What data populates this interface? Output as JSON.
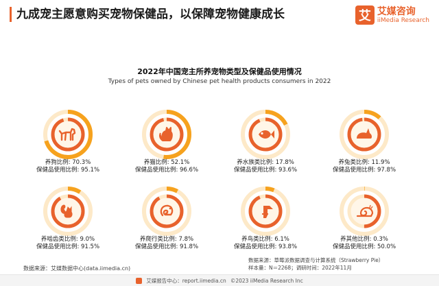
{
  "header": {
    "headline": "九成宠主愿意购买宠物保健品，以保障宠物健康成长"
  },
  "logo": {
    "mark": "艾",
    "name_cn": "艾媒咨询",
    "name_en": "iiMedia Research"
  },
  "colors": {
    "accent": "#e8622c",
    "ring_outer": "#f6a21e",
    "ring_track": "#fde9c8",
    "ring_inner": "#e8622c",
    "inner_bg": "#fff6e8"
  },
  "chart_data": {
    "type": "donut",
    "title": "2022年中国宠主所养宠物类型及保健品使用情况",
    "subtitle": "Types of pets owned by Chinese pet health products consumers in 2022",
    "categories": [
      {
        "icon": "dog-icon",
        "pet_label": "养狗比例: 70.3%",
        "health_label": "保健品使用比例: 95.1%",
        "pet_ratio": 70.3,
        "health_ratio": 95.1
      },
      {
        "icon": "cat-icon",
        "pet_label": "养猫比例: 52.1%",
        "health_label": "保健品使用比例: 96.6%",
        "pet_ratio": 52.1,
        "health_ratio": 96.6
      },
      {
        "icon": "fish-icon",
        "pet_label": "养水族类比例: 17.8%",
        "health_label": "保健品使用比例: 93.6%",
        "pet_ratio": 17.8,
        "health_ratio": 93.6
      },
      {
        "icon": "rabbit-icon",
        "pet_label": "养兔类比例: 11.9%",
        "health_label": "保健品使用比例: 97.8%",
        "pet_ratio": 11.9,
        "health_ratio": 97.8
      },
      {
        "icon": "squirrel-icon",
        "pet_label": "养啮齿类比例: 9.0%",
        "health_label": "保健品使用比例: 91.5%",
        "pet_ratio": 9.0,
        "health_ratio": 91.5
      },
      {
        "icon": "chameleon-icon",
        "pet_label": "养爬行类比例: 7.8%",
        "health_label": "保健品使用比例: 91.8%",
        "pet_ratio": 7.8,
        "health_ratio": 91.8
      },
      {
        "icon": "bird-icon",
        "pet_label": "养鸟类比例: 6.1%",
        "health_label": "保健品使用比例: 93.8%",
        "pet_ratio": 6.1,
        "health_ratio": 93.8
      },
      {
        "icon": "snail-icon",
        "pet_label": "养其他比例: 0.3%",
        "health_label": "保健品使用比例: 50.0%",
        "pet_ratio": 0.3,
        "health_ratio": 50.0
      }
    ]
  },
  "footer": {
    "source": "数据来源：艾媒数据中心(data.iimedia.cn)",
    "meta_line1": "数据来源：草莓派数据调查与计算系统（Strawberry Pie）",
    "meta_line2": "样本量：N＝2268；调研时间：2022年11月",
    "bar_brand": "艾媒报告中心：report.iimedia.cn",
    "bar_copyright": "©2023  iiMedia Research Inc"
  }
}
